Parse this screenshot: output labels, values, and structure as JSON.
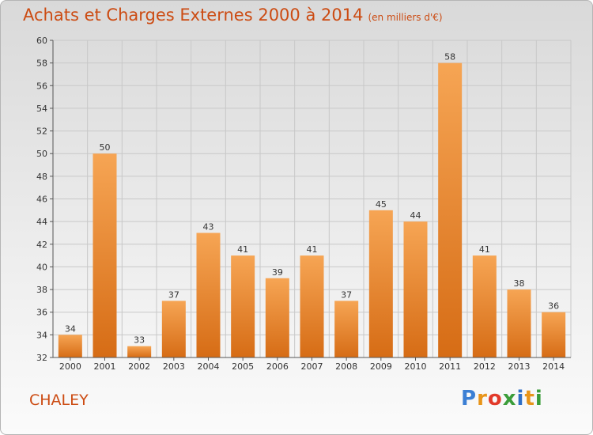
{
  "header": {
    "title": "Achats et Charges Externes 2000 à 2014",
    "subtitle": "(en milliers d'€)"
  },
  "footer": {
    "place": "CHALEY",
    "logo": "Proxiti",
    "logo_colors": [
      "#3b7fd4",
      "#e8951a",
      "#e23a2a",
      "#3b9d3a",
      "#2f6fc6",
      "#e8951a",
      "#3b9d3a"
    ]
  },
  "colors": {
    "bar_light": "#f6a554",
    "bar_dark": "#d66c15",
    "title": "#cc4b12"
  },
  "chart_data": {
    "type": "bar",
    "title": "Achats et Charges Externes 2000 à 2014",
    "subtitle": "(en milliers d'€)",
    "categories": [
      "2000",
      "2001",
      "2002",
      "2003",
      "2004",
      "2005",
      "2006",
      "2007",
      "2008",
      "2009",
      "2010",
      "2011",
      "2012",
      "2013",
      "2014"
    ],
    "values": [
      34,
      50,
      33,
      37,
      43,
      41,
      39,
      41,
      37,
      45,
      44,
      58,
      41,
      38,
      36
    ],
    "ylim": [
      32,
      60
    ],
    "yticks": [
      32,
      34,
      36,
      38,
      40,
      42,
      44,
      46,
      48,
      50,
      52,
      54,
      56,
      58,
      60
    ],
    "grid": true,
    "legend": "none"
  }
}
